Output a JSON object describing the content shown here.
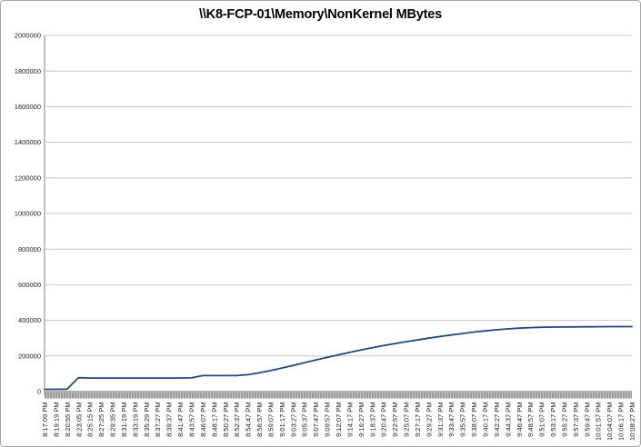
{
  "window": {
    "background": "#ffffff",
    "border_color": "#a6a6a6"
  },
  "chart_data": {
    "type": "line",
    "title": "\\\\K8-FCP-01\\Memory\\NonKernel MBytes",
    "xlabel": "",
    "ylabel": "",
    "ylim": [
      0,
      2000000
    ],
    "ytick_interval": 200000,
    "grid": "horizontal",
    "legend": "none",
    "gridline_color": "#c6c6c6",
    "axis_color": "#808080",
    "tick_band_dark": "#9a9a9a",
    "tick_band_light": "#c9c9c9",
    "label_color": "#1a1a1a",
    "categories": [
      "8:17:09 PM",
      "8:19:19 PM",
      "8:20:55 PM",
      "8:23:05 PM",
      "8:25:15 PM",
      "8:27:25 PM",
      "8:29:35 PM",
      "8:31:19 PM",
      "8:33:19 PM",
      "8:35:29 PM",
      "8:37:27 PM",
      "8:39:37 PM",
      "8:41:47 PM",
      "8:43:57 PM",
      "8:46:07 PM",
      "8:48:17 PM",
      "8:50:27 PM",
      "8:52:37 PM",
      "8:54:47 PM",
      "8:56:57 PM",
      "8:59:07 PM",
      "9:01:17 PM",
      "9:03:27 PM",
      "9:05:37 PM",
      "9:07:47 PM",
      "9:09:57 PM",
      "9:12:07 PM",
      "9:14:17 PM",
      "9:16:27 PM",
      "9:18:37 PM",
      "9:20:47 PM",
      "9:22:57 PM",
      "9:25:07 PM",
      "9:27:17 PM",
      "9:29:27 PM",
      "9:31:37 PM",
      "9:33:47 PM",
      "9:35:57 PM",
      "9:38:07 PM",
      "9:40:17 PM",
      "9:42:27 PM",
      "9:44:37 PM",
      "9:46:47 PM",
      "9:48:57 PM",
      "9:51:07 PM",
      "9:53:17 PM",
      "9:55:27 PM",
      "9:57:37 PM",
      "9:59:47 PM",
      "10:01:57 PM",
      "10:04:07 PM",
      "10:06:17 PM",
      "10:08:27 PM"
    ],
    "series": [
      {
        "name": "NonKernel MBytes",
        "color": "#1f497d",
        "values": [
          13000,
          13000,
          14000,
          78000,
          76000,
          76000,
          76000,
          76000,
          76000,
          76000,
          76000,
          76000,
          76000,
          77000,
          90000,
          90000,
          90000,
          90000,
          95000,
          105000,
          118000,
          132000,
          147000,
          162000,
          177000,
          192000,
          206000,
          220000,
          233000,
          246000,
          258000,
          269000,
          280000,
          290000,
          300000,
          309000,
          318000,
          326000,
          334000,
          341000,
          347000,
          352000,
          356000,
          359000,
          361000,
          362000,
          363000,
          363500,
          364000,
          364500,
          365000,
          365000,
          365000
        ]
      }
    ]
  }
}
